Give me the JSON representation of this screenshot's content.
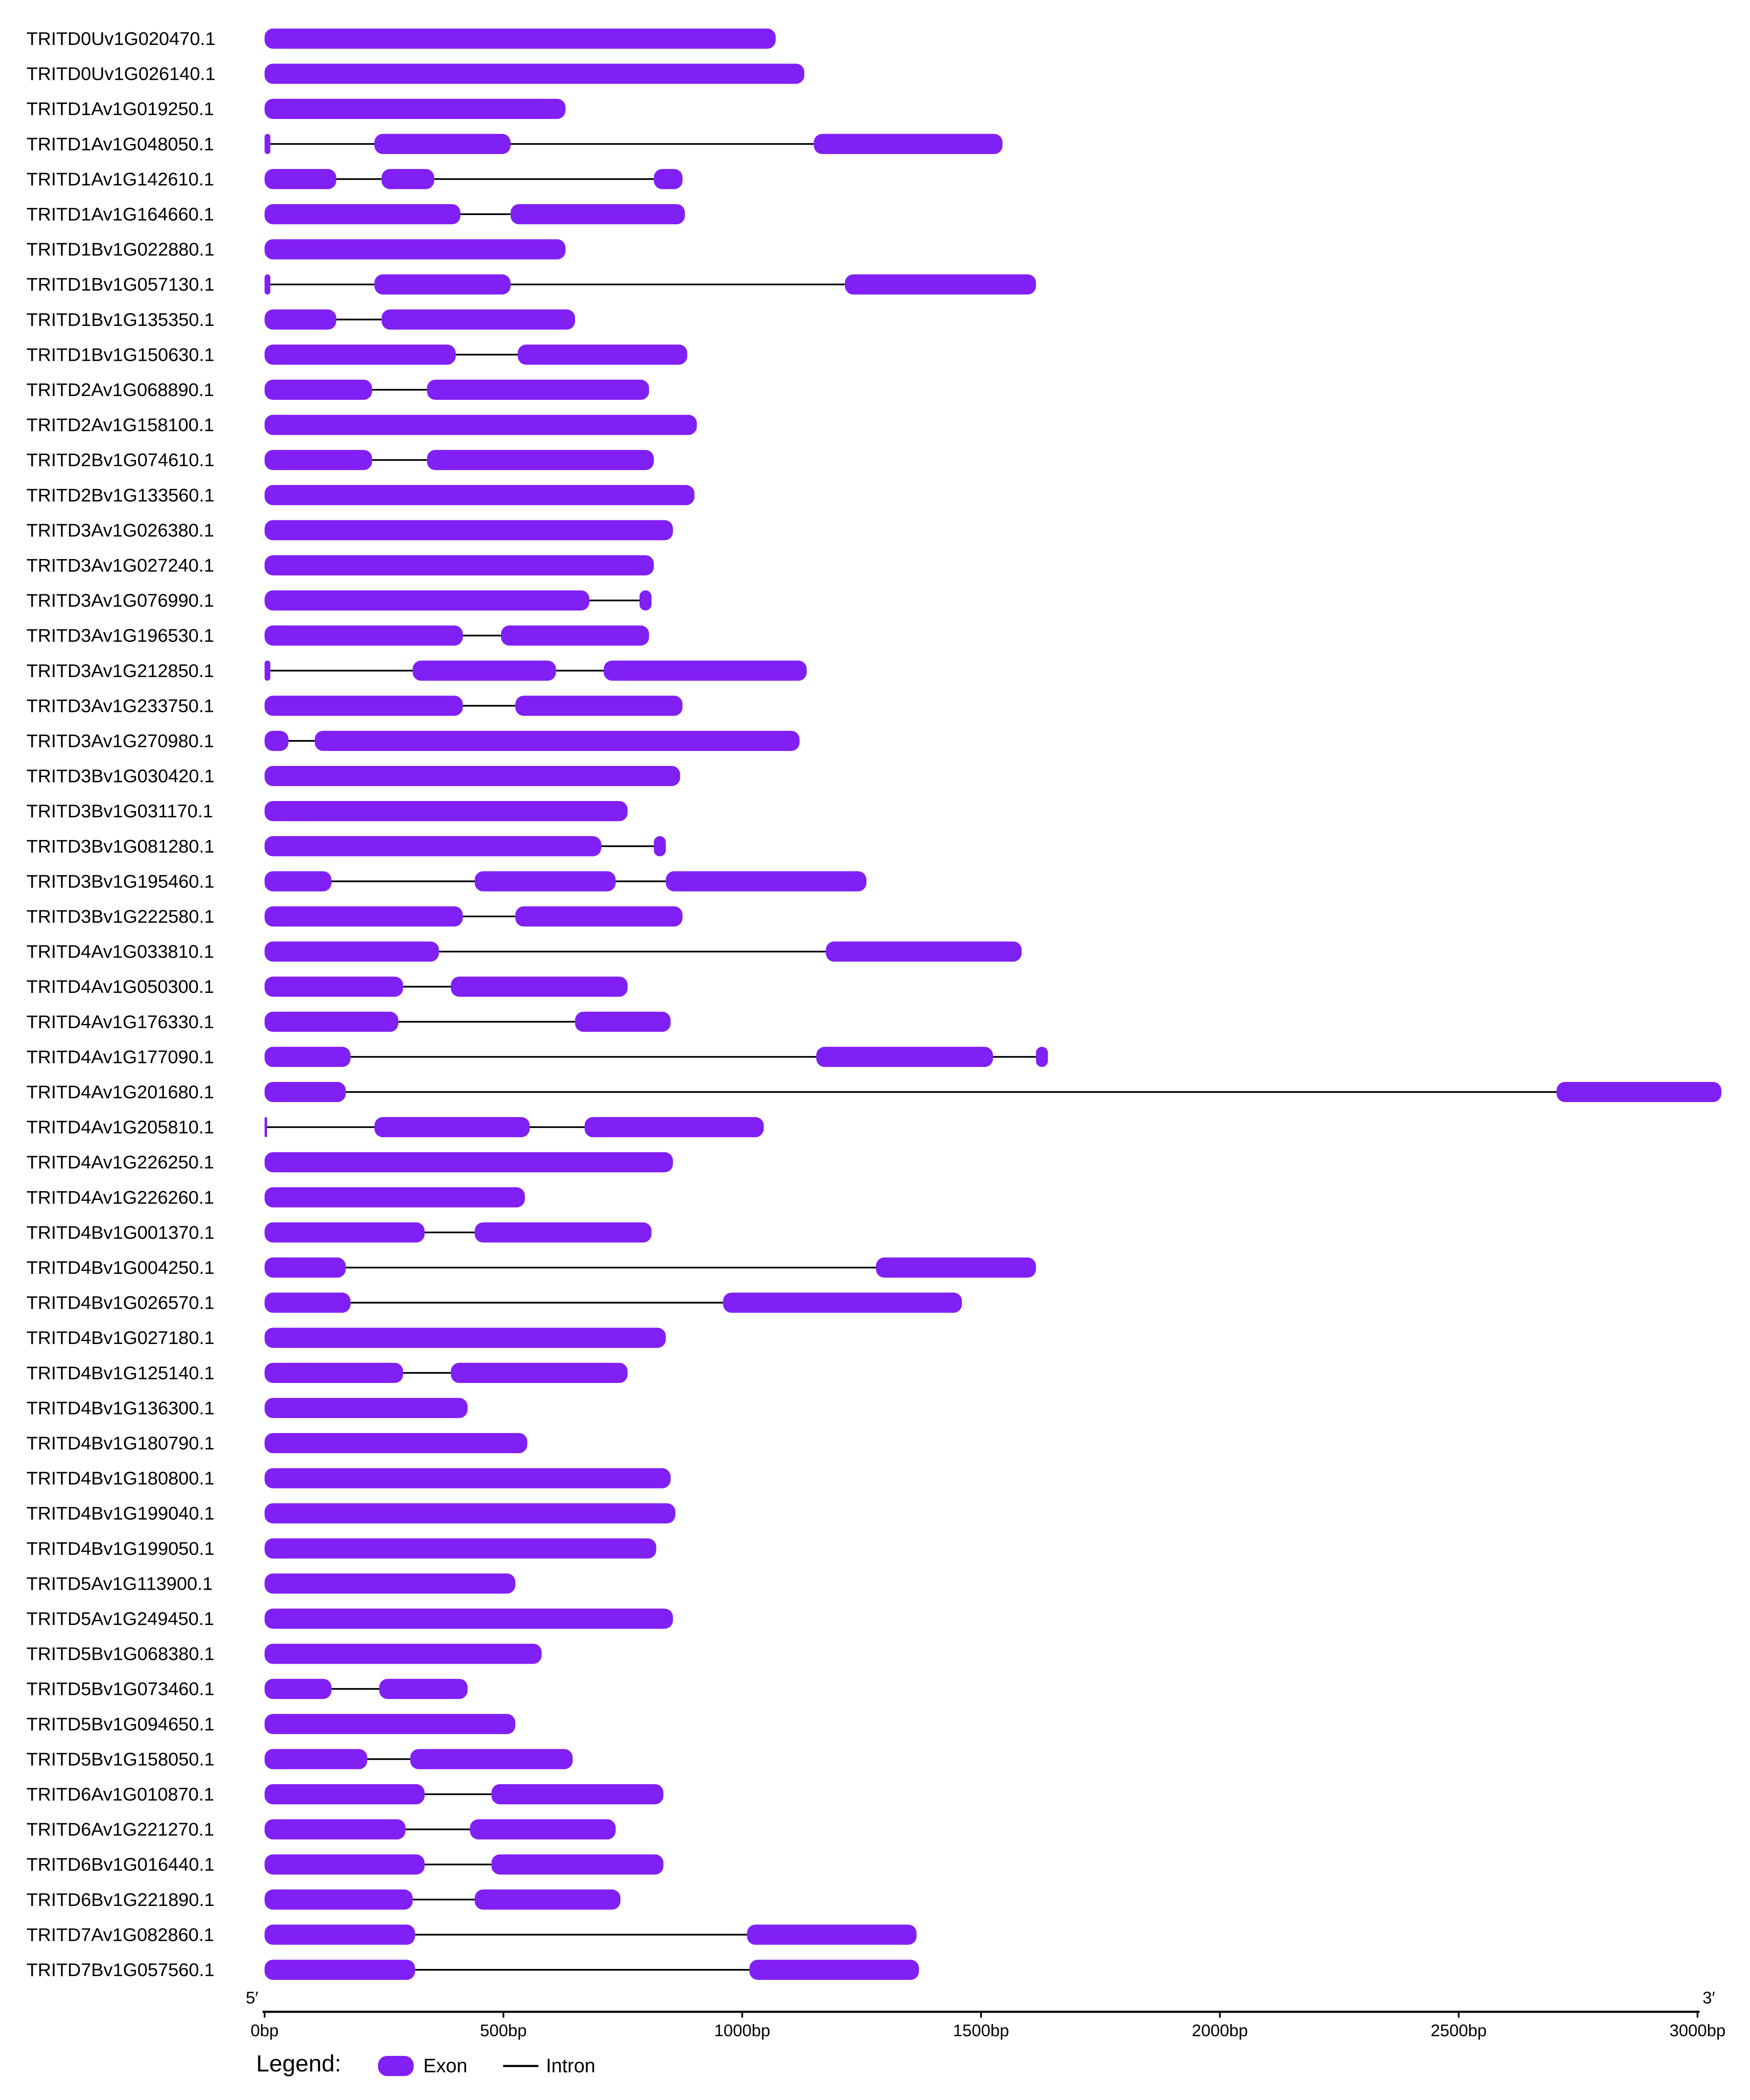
{
  "legend": {
    "title": "Legend:",
    "exon_label": "Exon",
    "intron_label": "Intron"
  },
  "axis": {
    "start_label": "5′",
    "end_label": "3′",
    "unit": "bp",
    "ticks": [
      "0bp",
      "500bp",
      "1000bp",
      "1500bp",
      "2000bp",
      "2500bp",
      "3000bp"
    ],
    "range": [
      0,
      3000
    ]
  },
  "colors": {
    "exon": "#8020F5",
    "intron": "#000000"
  },
  "chart_data": {
    "type": "gene-structure",
    "x_range": [
      0,
      3000
    ],
    "genes": [
      {
        "id": "TRITD0Uv1G020470.1",
        "exons": [
          [
            0,
            1070
          ]
        ]
      },
      {
        "id": "TRITD0Uv1G026140.1",
        "exons": [
          [
            0,
            1130
          ]
        ]
      },
      {
        "id": "TRITD1Av1G019250.1",
        "exons": [
          [
            0,
            630
          ]
        ]
      },
      {
        "id": "TRITD1Av1G048050.1",
        "exons": [
          [
            0,
            12
          ],
          [
            230,
            515
          ],
          [
            1150,
            1545
          ]
        ]
      },
      {
        "id": "TRITD1Av1G142610.1",
        "exons": [
          [
            0,
            150
          ],
          [
            245,
            355
          ],
          [
            815,
            875
          ]
        ]
      },
      {
        "id": "TRITD1Av1G164660.1",
        "exons": [
          [
            0,
            410
          ],
          [
            515,
            880
          ]
        ]
      },
      {
        "id": "TRITD1Bv1G022880.1",
        "exons": [
          [
            0,
            630
          ]
        ]
      },
      {
        "id": "TRITD1Bv1G057130.1",
        "exons": [
          [
            0,
            12
          ],
          [
            230,
            515
          ],
          [
            1215,
            1615
          ]
        ]
      },
      {
        "id": "TRITD1Bv1G135350.1",
        "exons": [
          [
            0,
            150
          ],
          [
            245,
            650
          ]
        ]
      },
      {
        "id": "TRITD1Bv1G150630.1",
        "exons": [
          [
            0,
            400
          ],
          [
            530,
            885
          ]
        ]
      },
      {
        "id": "TRITD2Av1G068890.1",
        "exons": [
          [
            0,
            225
          ],
          [
            340,
            805
          ]
        ]
      },
      {
        "id": "TRITD2Av1G158100.1",
        "exons": [
          [
            0,
            905
          ]
        ]
      },
      {
        "id": "TRITD2Bv1G074610.1",
        "exons": [
          [
            0,
            225
          ],
          [
            340,
            815
          ]
        ]
      },
      {
        "id": "TRITD2Bv1G133560.1",
        "exons": [
          [
            0,
            900
          ]
        ]
      },
      {
        "id": "TRITD3Av1G026380.1",
        "exons": [
          [
            0,
            855
          ]
        ]
      },
      {
        "id": "TRITD3Av1G027240.1",
        "exons": [
          [
            0,
            815
          ]
        ]
      },
      {
        "id": "TRITD3Av1G076990.1",
        "exons": [
          [
            0,
            680
          ],
          [
            785,
            810
          ]
        ]
      },
      {
        "id": "TRITD3Av1G196530.1",
        "exons": [
          [
            0,
            415
          ],
          [
            495,
            805
          ]
        ]
      },
      {
        "id": "TRITD3Av1G212850.1",
        "exons": [
          [
            0,
            12
          ],
          [
            310,
            610
          ],
          [
            710,
            1135
          ]
        ]
      },
      {
        "id": "TRITD3Av1G233750.1",
        "exons": [
          [
            0,
            415
          ],
          [
            525,
            875
          ]
        ]
      },
      {
        "id": "TRITD3Av1G270980.1",
        "exons": [
          [
            0,
            50
          ],
          [
            105,
            1120
          ]
        ]
      },
      {
        "id": "TRITD3Bv1G030420.1",
        "exons": [
          [
            0,
            870
          ]
        ]
      },
      {
        "id": "TRITD3Bv1G031170.1",
        "exons": [
          [
            0,
            760
          ]
        ]
      },
      {
        "id": "TRITD3Bv1G081280.1",
        "exons": [
          [
            0,
            705
          ],
          [
            815,
            840
          ]
        ]
      },
      {
        "id": "TRITD3Bv1G195460.1",
        "exons": [
          [
            0,
            140
          ],
          [
            440,
            735
          ],
          [
            840,
            1260
          ]
        ]
      },
      {
        "id": "TRITD3Bv1G222580.1",
        "exons": [
          [
            0,
            415
          ],
          [
            525,
            875
          ]
        ]
      },
      {
        "id": "TRITD4Av1G033810.1",
        "exons": [
          [
            0,
            365
          ],
          [
            1175,
            1585
          ]
        ]
      },
      {
        "id": "TRITD4Av1G050300.1",
        "exons": [
          [
            0,
            290
          ],
          [
            390,
            760
          ]
        ]
      },
      {
        "id": "TRITD4Av1G176330.1",
        "exons": [
          [
            0,
            280
          ],
          [
            650,
            850
          ]
        ]
      },
      {
        "id": "TRITD4Av1G177090.1",
        "exons": [
          [
            0,
            180
          ],
          [
            1155,
            1525
          ],
          [
            1615,
            1640
          ]
        ]
      },
      {
        "id": "TRITD4Av1G201680.1",
        "exons": [
          [
            0,
            170
          ],
          [
            2705,
            3050
          ]
        ]
      },
      {
        "id": "TRITD4Av1G205810.1",
        "exons": [
          [
            0,
            3
          ],
          [
            230,
            555
          ],
          [
            670,
            1045
          ]
        ]
      },
      {
        "id": "TRITD4Av1G226250.1",
        "exons": [
          [
            0,
            855
          ]
        ]
      },
      {
        "id": "TRITD4Av1G226260.1",
        "exons": [
          [
            0,
            545
          ]
        ]
      },
      {
        "id": "TRITD4Bv1G001370.1",
        "exons": [
          [
            0,
            335
          ],
          [
            440,
            810
          ]
        ]
      },
      {
        "id": "TRITD4Bv1G004250.1",
        "exons": [
          [
            0,
            170
          ],
          [
            1280,
            1615
          ]
        ]
      },
      {
        "id": "TRITD4Bv1G026570.1",
        "exons": [
          [
            0,
            180
          ],
          [
            960,
            1460
          ]
        ]
      },
      {
        "id": "TRITD4Bv1G027180.1",
        "exons": [
          [
            0,
            840
          ]
        ]
      },
      {
        "id": "TRITD4Bv1G125140.1",
        "exons": [
          [
            0,
            290
          ],
          [
            390,
            760
          ]
        ]
      },
      {
        "id": "TRITD4Bv1G136300.1",
        "exons": [
          [
            0,
            425
          ]
        ]
      },
      {
        "id": "TRITD4Bv1G180790.1",
        "exons": [
          [
            0,
            550
          ]
        ]
      },
      {
        "id": "TRITD4Bv1G180800.1",
        "exons": [
          [
            0,
            850
          ]
        ]
      },
      {
        "id": "TRITD4Bv1G199040.1",
        "exons": [
          [
            0,
            860
          ]
        ]
      },
      {
        "id": "TRITD4Bv1G199050.1",
        "exons": [
          [
            0,
            820
          ]
        ]
      },
      {
        "id": "TRITD5Av1G113900.1",
        "exons": [
          [
            0,
            525
          ]
        ]
      },
      {
        "id": "TRITD5Av1G249450.1",
        "exons": [
          [
            0,
            855
          ]
        ]
      },
      {
        "id": "TRITD5Bv1G068380.1",
        "exons": [
          [
            0,
            580
          ]
        ]
      },
      {
        "id": "TRITD5Bv1G073460.1",
        "exons": [
          [
            0,
            140
          ],
          [
            240,
            425
          ]
        ]
      },
      {
        "id": "TRITD5Bv1G094650.1",
        "exons": [
          [
            0,
            525
          ]
        ]
      },
      {
        "id": "TRITD5Bv1G158050.1",
        "exons": [
          [
            0,
            215
          ],
          [
            305,
            645
          ]
        ]
      },
      {
        "id": "TRITD6Av1G010870.1",
        "exons": [
          [
            0,
            335
          ],
          [
            475,
            835
          ]
        ]
      },
      {
        "id": "TRITD6Av1G221270.1",
        "exons": [
          [
            0,
            295
          ],
          [
            430,
            735
          ]
        ]
      },
      {
        "id": "TRITD6Bv1G016440.1",
        "exons": [
          [
            0,
            335
          ],
          [
            475,
            835
          ]
        ]
      },
      {
        "id": "TRITD6Bv1G221890.1",
        "exons": [
          [
            0,
            310
          ],
          [
            440,
            745
          ]
        ]
      },
      {
        "id": "TRITD7Av1G082860.1",
        "exons": [
          [
            0,
            315
          ],
          [
            1010,
            1365
          ]
        ]
      },
      {
        "id": "TRITD7Bv1G057560.1",
        "exons": [
          [
            0,
            315
          ],
          [
            1015,
            1370
          ]
        ]
      }
    ]
  }
}
